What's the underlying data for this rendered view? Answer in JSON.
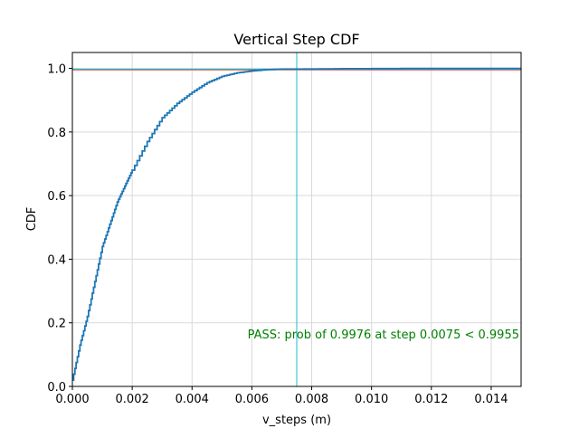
{
  "chart_data": {
    "type": "line",
    "title": "Vertical Step CDF",
    "xlabel": "v_steps (m)",
    "ylabel": "CDF",
    "xlim": [
      0,
      0.015
    ],
    "ylim": [
      0,
      1.05
    ],
    "xticks": [
      "0.000",
      "0.002",
      "0.004",
      "0.006",
      "0.008",
      "0.010",
      "0.012",
      "0.014"
    ],
    "xtick_values": [
      0,
      0.002,
      0.004,
      0.006,
      0.008,
      0.01,
      0.012,
      0.014
    ],
    "yticks": [
      "0.0",
      "0.2",
      "0.4",
      "0.6",
      "0.8",
      "1.0"
    ],
    "ytick_values": [
      0,
      0.2,
      0.4,
      0.6,
      0.8,
      1.0
    ],
    "grid": true,
    "series": [
      {
        "style": "step",
        "color": "#1f77b4",
        "x": [
          0,
          0.00025,
          0.0005,
          0.00075,
          0.001,
          0.00125,
          0.0015,
          0.00175,
          0.002,
          0.0025,
          0.003,
          0.0035,
          0.004,
          0.0045,
          0.005,
          0.0055,
          0.006,
          0.0065,
          0.007,
          0.0075,
          0.009,
          0.011,
          0.015
        ],
        "y": [
          0.02,
          0.13,
          0.22,
          0.33,
          0.44,
          0.51,
          0.58,
          0.63,
          0.68,
          0.77,
          0.845,
          0.89,
          0.925,
          0.955,
          0.975,
          0.986,
          0.992,
          0.996,
          0.9975,
          0.9976,
          0.999,
          0.9995,
          1.0
        ]
      }
    ],
    "reference_lines": [
      {
        "orientation": "horizontal",
        "value": 0.9955,
        "color": "#d62728"
      },
      {
        "orientation": "horizontal",
        "value": 0.9976,
        "color": "#17becf"
      },
      {
        "orientation": "vertical",
        "value": 0.0075,
        "color": "#17becf"
      }
    ],
    "annotation": {
      "text": "PASS: prob of 0.9976 at step 0.0075 < 0.9955",
      "color": "#008000"
    }
  }
}
